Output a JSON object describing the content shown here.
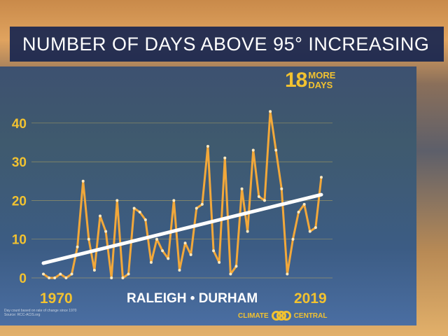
{
  "title": "NUMBER OF DAYS ABOVE 95° INCREASING",
  "badge": {
    "number": "18",
    "line1": "MORE",
    "line2": "DAYS"
  },
  "city": "RALEIGH • DURHAM",
  "note": {
    "line1": "Day count based on rate of change since 1970",
    "line2": "Source: RCC-ACIS.org"
  },
  "logo": {
    "left": "CLIMATE",
    "right": "CENTRAL"
  },
  "colors": {
    "line": "#f2a83a",
    "trend": "#ffffff",
    "accent": "#f2c230"
  },
  "chart_data": {
    "type": "line",
    "x_start_label": "1970",
    "x_end_label": "2019",
    "x": [
      1970,
      1971,
      1972,
      1973,
      1974,
      1975,
      1976,
      1977,
      1978,
      1979,
      1980,
      1981,
      1982,
      1983,
      1984,
      1985,
      1986,
      1987,
      1988,
      1989,
      1990,
      1991,
      1992,
      1993,
      1994,
      1995,
      1996,
      1997,
      1998,
      1999,
      2000,
      2001,
      2002,
      2003,
      2004,
      2005,
      2006,
      2007,
      2008,
      2009,
      2010,
      2011,
      2012,
      2013,
      2014,
      2015,
      2016,
      2017,
      2018,
      2019
    ],
    "values": [
      1,
      0,
      0,
      1,
      0,
      1,
      8,
      25,
      10,
      2,
      16,
      12,
      0,
      20,
      0,
      1,
      18,
      17,
      15,
      4,
      10,
      7,
      5,
      20,
      2,
      9,
      6,
      18,
      19,
      34,
      7,
      4,
      31,
      1,
      3,
      23,
      12,
      33,
      21,
      20,
      43,
      33,
      23,
      1,
      10,
      17,
      19,
      12,
      13,
      26
    ],
    "trend": {
      "start": 3.8,
      "end": 21.5
    },
    "yticks": [
      0,
      10,
      20,
      30,
      40
    ],
    "ylim": [
      0,
      45
    ],
    "grid": true
  }
}
